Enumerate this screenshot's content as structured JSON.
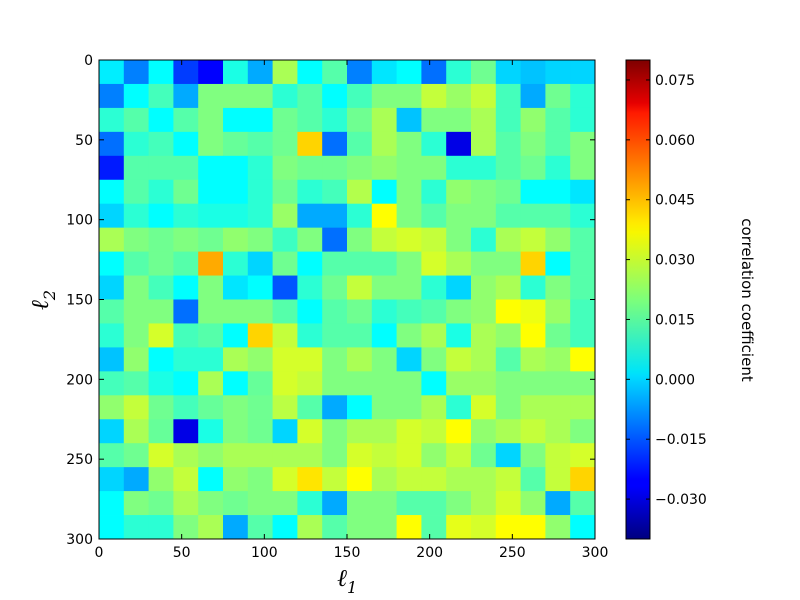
{
  "chart_data": {
    "type": "heatmap",
    "xlabel": "ℓ",
    "xlabel_sub": "1",
    "ylabel": "ℓ",
    "ylabel_sub": "2",
    "xlim": [
      0,
      300
    ],
    "ylim": [
      0,
      300
    ],
    "y_inverted": true,
    "x_ticks": [
      0,
      50,
      100,
      150,
      200,
      250,
      300
    ],
    "y_ticks": [
      0,
      50,
      100,
      150,
      200,
      250,
      300
    ],
    "grid_rows": 20,
    "grid_cols": 20,
    "colormap": "jet",
    "vmin": -0.04,
    "vmax": 0.08,
    "colorbar": {
      "label": "correlation coefficient",
      "ticks": [
        "−0.030",
        "−0.015",
        "0.000",
        "0.015",
        "0.030",
        "0.045",
        "0.060",
        "0.075"
      ],
      "tick_values": [
        -0.03,
        -0.015,
        0.0,
        0.015,
        0.03,
        0.045,
        0.06,
        0.075
      ]
    },
    "values": [
      [
        0.003,
        -0.01,
        0.005,
        -0.018,
        -0.025,
        0.008,
        -0.005,
        0.025,
        0.005,
        0.015,
        -0.01,
        0.002,
        0.005,
        -0.012,
        0.01,
        0.018,
        0.0,
        -0.002,
        0.0,
        0.0
      ],
      [
        -0.01,
        0.005,
        0.013,
        -0.005,
        0.02,
        0.02,
        0.02,
        0.01,
        0.015,
        0.005,
        0.013,
        0.02,
        0.02,
        0.028,
        0.023,
        0.028,
        0.013,
        -0.005,
        0.018,
        0.01
      ],
      [
        0.01,
        0.015,
        0.005,
        0.015,
        0.02,
        0.005,
        0.005,
        0.018,
        0.015,
        0.01,
        0.018,
        0.025,
        -0.002,
        0.02,
        0.02,
        0.025,
        0.013,
        0.022,
        0.015,
        0.01
      ],
      [
        -0.012,
        0.01,
        0.013,
        0.005,
        0.02,
        0.017,
        0.015,
        0.018,
        0.04,
        -0.012,
        0.015,
        0.025,
        0.02,
        0.01,
        -0.028,
        0.025,
        0.015,
        0.02,
        0.015,
        0.02
      ],
      [
        -0.022,
        0.015,
        0.015,
        0.015,
        0.005,
        0.005,
        0.01,
        0.02,
        0.018,
        0.018,
        0.02,
        0.022,
        0.02,
        0.02,
        0.01,
        0.01,
        0.015,
        0.018,
        0.01,
        0.02
      ],
      [
        0.005,
        0.015,
        0.01,
        0.018,
        0.005,
        0.005,
        0.01,
        0.018,
        0.01,
        0.013,
        0.026,
        0.005,
        0.02,
        0.01,
        0.022,
        0.02,
        0.018,
        0.005,
        0.005,
        0.002
      ],
      [
        0.0,
        0.01,
        0.005,
        0.01,
        0.008,
        0.008,
        0.01,
        0.023,
        -0.005,
        -0.005,
        0.01,
        0.035,
        0.02,
        0.015,
        0.02,
        0.02,
        0.015,
        0.015,
        0.015,
        0.01
      ],
      [
        0.025,
        0.02,
        0.018,
        0.02,
        0.018,
        0.022,
        0.02,
        0.012,
        0.02,
        -0.012,
        0.02,
        0.028,
        0.03,
        0.028,
        0.02,
        0.01,
        0.025,
        0.028,
        0.022,
        0.015
      ],
      [
        0.005,
        0.015,
        0.018,
        0.015,
        0.045,
        0.01,
        0.0,
        0.018,
        0.005,
        0.015,
        0.015,
        0.015,
        0.02,
        0.03,
        0.025,
        0.02,
        0.02,
        0.04,
        0.005,
        0.015
      ],
      [
        0.0,
        0.02,
        0.013,
        0.005,
        0.02,
        0.002,
        0.005,
        -0.015,
        0.01,
        0.018,
        0.028,
        0.02,
        0.02,
        0.01,
        0.0,
        0.022,
        0.025,
        0.01,
        0.02,
        0.015
      ],
      [
        0.015,
        0.02,
        0.02,
        -0.012,
        0.02,
        0.02,
        0.02,
        0.015,
        0.005,
        0.015,
        0.018,
        0.01,
        0.013,
        0.015,
        0.02,
        0.022,
        0.035,
        0.033,
        0.023,
        0.013
      ],
      [
        0.01,
        0.02,
        0.03,
        0.013,
        0.015,
        0.005,
        0.04,
        0.028,
        0.01,
        0.015,
        0.015,
        0.005,
        0.02,
        0.025,
        0.008,
        0.025,
        0.022,
        0.035,
        0.018,
        0.013
      ],
      [
        -0.002,
        0.022,
        0.005,
        0.01,
        0.01,
        0.025,
        0.022,
        0.03,
        0.03,
        0.02,
        0.025,
        0.02,
        0.0,
        0.02,
        0.028,
        0.025,
        0.015,
        0.025,
        0.023,
        0.035
      ],
      [
        0.013,
        0.015,
        0.008,
        0.005,
        0.025,
        0.005,
        0.017,
        0.03,
        0.028,
        0.02,
        0.02,
        0.02,
        0.02,
        0.005,
        0.023,
        0.023,
        0.02,
        0.02,
        0.02,
        0.02
      ],
      [
        0.022,
        0.028,
        0.018,
        0.013,
        0.017,
        0.02,
        0.018,
        0.027,
        0.015,
        -0.005,
        0.005,
        0.02,
        0.02,
        0.025,
        0.01,
        0.03,
        0.02,
        0.025,
        0.025,
        0.025
      ],
      [
        0.0,
        0.025,
        0.017,
        -0.028,
        0.008,
        0.02,
        0.018,
        0.0,
        0.03,
        0.02,
        0.025,
        0.025,
        0.03,
        0.028,
        0.035,
        0.022,
        0.025,
        0.028,
        0.025,
        0.02
      ],
      [
        0.015,
        0.018,
        0.03,
        0.025,
        0.022,
        0.025,
        0.025,
        0.025,
        0.025,
        0.02,
        0.03,
        0.028,
        0.03,
        0.022,
        0.028,
        0.018,
        0.0,
        0.02,
        0.028,
        0.03
      ],
      [
        0.0,
        -0.005,
        0.022,
        0.028,
        0.005,
        0.022,
        0.02,
        0.03,
        0.038,
        0.028,
        0.035,
        0.025,
        0.028,
        0.028,
        0.025,
        0.025,
        0.028,
        0.015,
        0.028,
        0.04
      ],
      [
        0.005,
        0.02,
        0.018,
        0.025,
        0.02,
        0.018,
        0.02,
        0.02,
        0.01,
        -0.005,
        0.02,
        0.02,
        0.015,
        0.015,
        0.02,
        0.025,
        0.03,
        0.022,
        -0.005,
        0.015
      ],
      [
        0.005,
        0.01,
        0.01,
        0.02,
        0.025,
        -0.005,
        0.015,
        0.005,
        0.025,
        0.015,
        0.02,
        0.02,
        0.035,
        0.015,
        0.032,
        0.03,
        0.035,
        0.035,
        0.022,
        0.005
      ]
    ]
  }
}
